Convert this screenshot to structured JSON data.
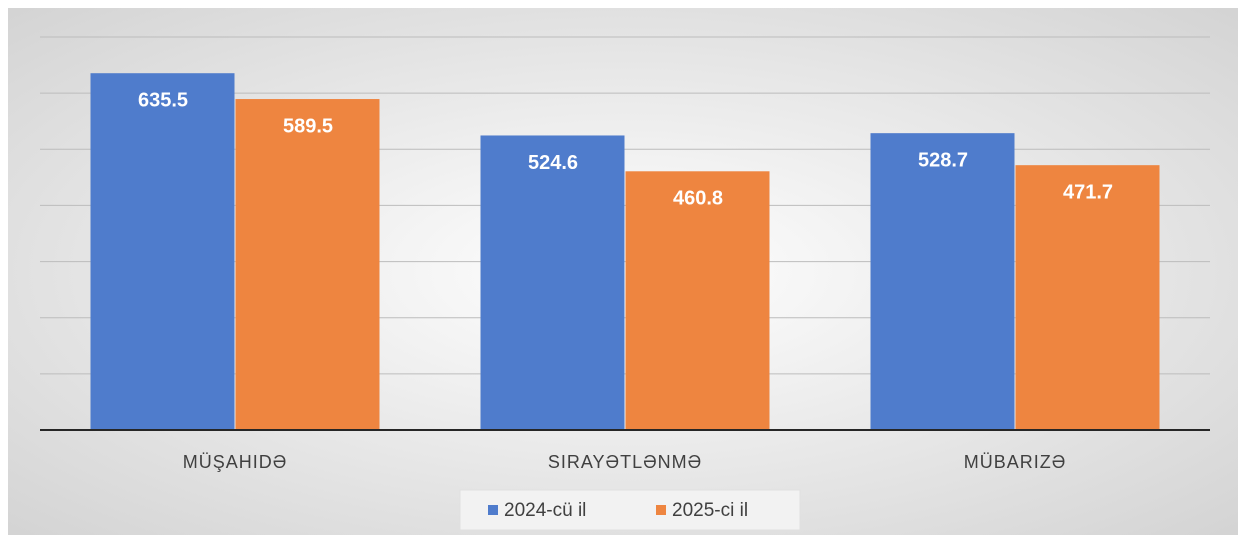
{
  "chart_data": {
    "type": "bar",
    "categories": [
      "MÜŞAHIDƏ",
      "SIRAYƏTLƏNMƏ",
      "MÜBARIZƏ"
    ],
    "series": [
      {
        "name": "2024-cü il",
        "color": "#4f7ccc",
        "values": [
          635.5,
          524.6,
          528.7
        ]
      },
      {
        "name": "2025-ci il",
        "color": "#ee8540",
        "values": [
          589.5,
          460.8,
          471.7
        ]
      }
    ],
    "ylim": [
      0,
      700
    ],
    "yticks": [
      0,
      100,
      200,
      300,
      400,
      500,
      600,
      700
    ],
    "grid": true,
    "legend": "bottom"
  }
}
